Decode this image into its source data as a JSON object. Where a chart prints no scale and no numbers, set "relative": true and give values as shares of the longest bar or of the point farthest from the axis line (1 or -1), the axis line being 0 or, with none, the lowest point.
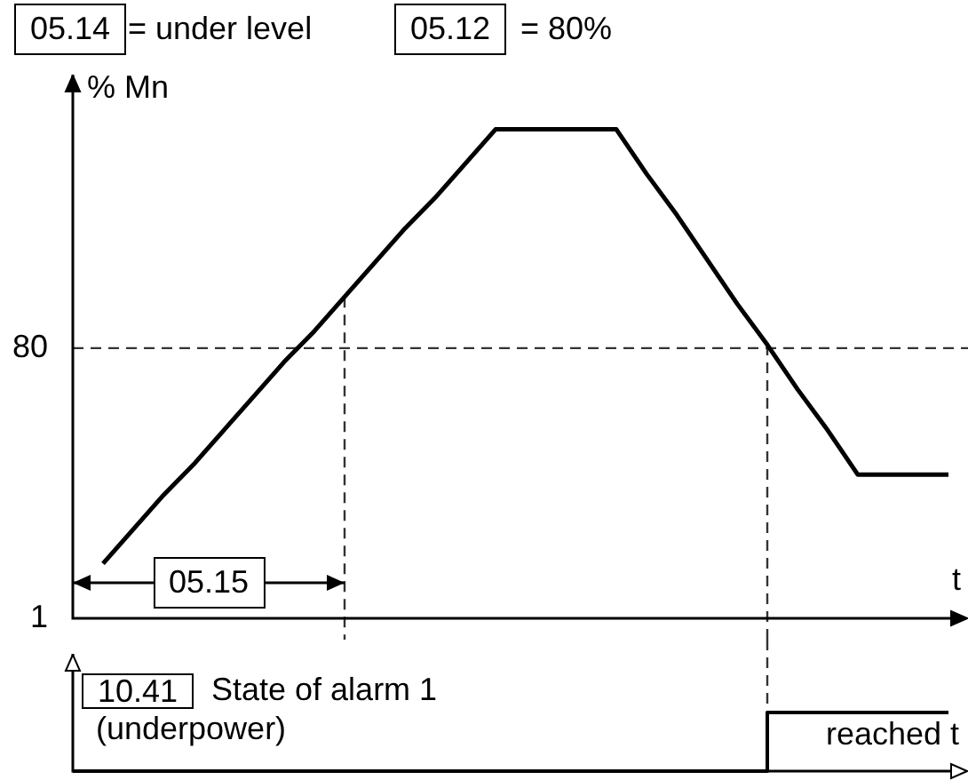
{
  "chart_data": [
    {
      "type": "line",
      "ylabel": "% Mn",
      "xlabel": "t",
      "annotations": [
        "05.14",
        "= under level",
        "05.12",
        "= 80%",
        "05.15"
      ],
      "categories": [
        null,
        null,
        null,
        null,
        null,
        null,
        null,
        null,
        null,
        null,
        null,
        null,
        null,
        null,
        null,
        null,
        null,
        null,
        null,
        null,
        null,
        null,
        null,
        null,
        null,
        null,
        null,
        null,
        null,
        null
      ],
      "series": [
        {
          "color": "#000000",
          "values": [
            null,
            17,
            27,
            37,
            46,
            56,
            66,
            76,
            85,
            95,
            105,
            115,
            124,
            134,
            144,
            144,
            144,
            144,
            144,
            131,
            119,
            106,
            93,
            81,
            68,
            56,
            43,
            43,
            43,
            43
          ]
        }
      ],
      "ylim": [
        1,
        160
      ],
      "yticks": [
        1,
        80
      ],
      "tick_labels": "y",
      "ref_lines": [
        {
          "axis": "y",
          "value": 80,
          "color": "#333333",
          "line_style": "dashed"
        }
      ]
    },
    {
      "type": "step",
      "relative": true,
      "annotations": [
        "10.41",
        "State of alarm 1",
        "(underpower)",
        "reached t"
      ],
      "categories": [
        null,
        null,
        null,
        null,
        null,
        null,
        null,
        null,
        null,
        null,
        null,
        null,
        null,
        null,
        null,
        null,
        null,
        null,
        null,
        null,
        null,
        null,
        null,
        null,
        null,
        null,
        null,
        null,
        null,
        null
      ],
      "series": [
        {
          "color": "#000000",
          "values": [
            0,
            0,
            0,
            0,
            0,
            0,
            0,
            0,
            0,
            0,
            0,
            0,
            0,
            0,
            0,
            0,
            0,
            0,
            0,
            0,
            0,
            0,
            0,
            1,
            1,
            1,
            1,
            1,
            1,
            1
          ]
        }
      ],
      "tick_labels": false
    }
  ]
}
